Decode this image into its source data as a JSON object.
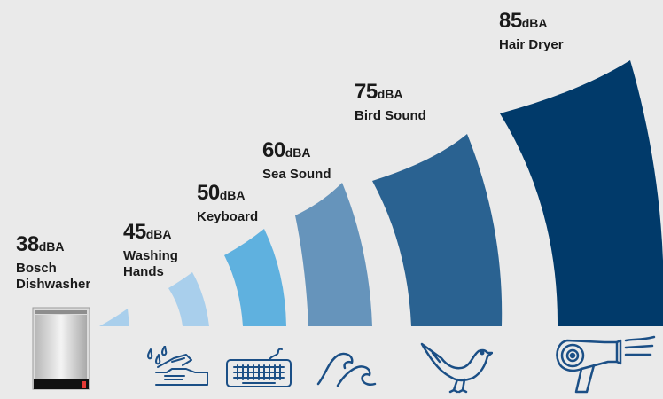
{
  "colors": {
    "background": "#eaeaea",
    "text": "#1a1a1a",
    "icon": "#1b4f86"
  },
  "levels": [
    {
      "value": "38",
      "unit": "dBA",
      "name_line1": "Bosch",
      "name_line2": "Dishwasher",
      "color": "#e8e8e8",
      "icon": "dishwasher-icon"
    },
    {
      "value": "45",
      "unit": "dBA",
      "name_line1": "Washing",
      "name_line2": "Hands",
      "color": "#a9cfec",
      "icon": "washing-hands-icon"
    },
    {
      "value": "50",
      "unit": "dBA",
      "name_line1": "Keyboard",
      "name_line2": "",
      "color": "#5fb1df",
      "icon": "keyboard-icon"
    },
    {
      "value": "60",
      "unit": "dBA",
      "name_line1": "Sea Sound",
      "name_line2": "",
      "color": "#6694bb",
      "icon": "waves-icon"
    },
    {
      "value": "75",
      "unit": "dBA",
      "name_line1": "Bird Sound",
      "name_line2": "",
      "color": "#2a6291",
      "icon": "bird-icon"
    },
    {
      "value": "85",
      "unit": "dBA",
      "name_line1": "Hair Dryer",
      "name_line2": "",
      "color": "#013a6a",
      "icon": "hair-dryer-icon"
    }
  ]
}
